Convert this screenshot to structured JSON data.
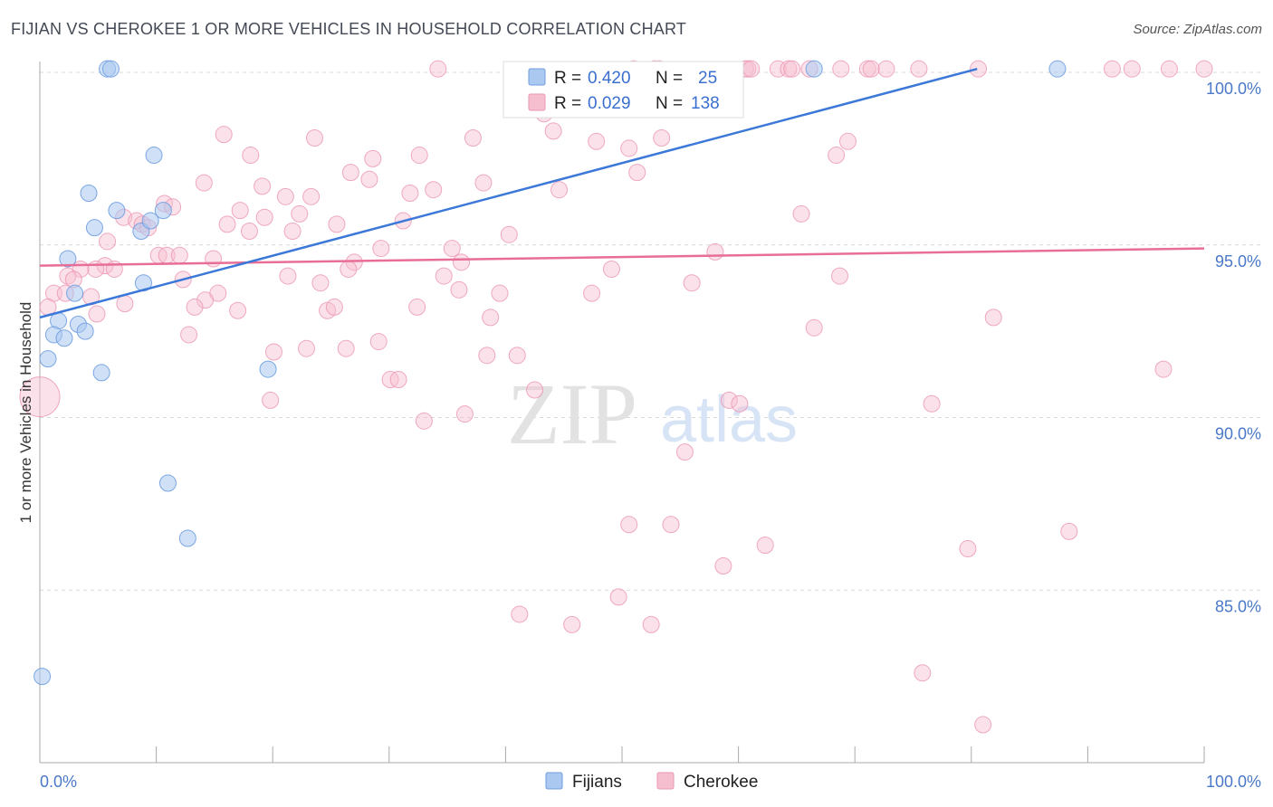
{
  "title": "FIJIAN VS CHEROKEE 1 OR MORE VEHICLES IN HOUSEHOLD CORRELATION CHART",
  "source": "Source: ZipAtlas.com",
  "watermark": {
    "zip": "ZIP",
    "atlas": "atlas"
  },
  "colors": {
    "fijian_fill": "#aac8f0",
    "fijian_stroke": "#6f9de0",
    "fijian_line": "#3b78d8",
    "cherokee_fill": "#f6bfd0",
    "cherokee_stroke": "#eb95b2",
    "cherokee_line": "#e86e98",
    "tick_text": "#4a78c8",
    "grid": "#d9d9d9"
  },
  "legend": {
    "fijian": {
      "r_label": "R = ",
      "r_value": "0.420",
      "n_label": "N = ",
      "n_value": "25"
    },
    "cherokee": {
      "r_label": "R = ",
      "r_value": "0.029",
      "n_label": "N = ",
      "n_value": "138"
    }
  },
  "chart_data": {
    "type": "scatter",
    "title": "FIJIAN VS CHEROKEE 1 OR MORE VEHICLES IN HOUSEHOLD CORRELATION CHART",
    "xlabel": "",
    "ylabel": "1 or more Vehicles in Household",
    "xlim": [
      0,
      100
    ],
    "ylim": [
      80,
      100.5
    ],
    "x_tick_labels": [
      "0.0%",
      "100.0%"
    ],
    "y_ticks": [
      85,
      90,
      95,
      100
    ],
    "y_tick_labels": [
      "85.0%",
      "90.0%",
      "95.0%",
      "100.0%"
    ],
    "grid": true,
    "legend": [
      "Fijians",
      "Cherokee"
    ],
    "series": [
      {
        "name": "Fijians",
        "r": 0.42,
        "n": 25,
        "trend": {
          "x": [
            0,
            80.5
          ],
          "y": [
            92.9,
            100.1
          ]
        },
        "points": [
          {
            "x": 5.8,
            "y": 100.1
          },
          {
            "x": 6.1,
            "y": 100.1
          },
          {
            "x": 66.5,
            "y": 100.1
          },
          {
            "x": 87.4,
            "y": 100.1
          },
          {
            "x": 9.8,
            "y": 97.6
          },
          {
            "x": 4.2,
            "y": 96.5
          },
          {
            "x": 6.6,
            "y": 96.0
          },
          {
            "x": 10.6,
            "y": 96.0
          },
          {
            "x": 4.7,
            "y": 95.5
          },
          {
            "x": 8.7,
            "y": 95.4
          },
          {
            "x": 9.5,
            "y": 95.7
          },
          {
            "x": 2.4,
            "y": 94.6
          },
          {
            "x": 8.9,
            "y": 93.9
          },
          {
            "x": 3.0,
            "y": 93.6
          },
          {
            "x": 1.6,
            "y": 92.8
          },
          {
            "x": 1.2,
            "y": 92.4
          },
          {
            "x": 2.1,
            "y": 92.3
          },
          {
            "x": 3.3,
            "y": 92.7
          },
          {
            "x": 3.9,
            "y": 92.5
          },
          {
            "x": 0.7,
            "y": 91.7
          },
          {
            "x": 5.3,
            "y": 91.3
          },
          {
            "x": 19.6,
            "y": 91.4
          },
          {
            "x": 11.0,
            "y": 88.1
          },
          {
            "x": 12.7,
            "y": 86.5
          },
          {
            "x": 0.2,
            "y": 82.5
          }
        ]
      },
      {
        "name": "Cherokee",
        "r": 0.029,
        "n": 138,
        "trend": {
          "x": [
            0,
            100
          ],
          "y": [
            94.4,
            94.9
          ]
        },
        "points": [
          {
            "x": 34.2,
            "y": 100.1
          },
          {
            "x": 51.0,
            "y": 100.1
          },
          {
            "x": 52.8,
            "y": 100.1
          },
          {
            "x": 53.2,
            "y": 100.1
          },
          {
            "x": 60.6,
            "y": 100.1
          },
          {
            "x": 60.8,
            "y": 100.1
          },
          {
            "x": 61.1,
            "y": 100.1
          },
          {
            "x": 63.4,
            "y": 100.1
          },
          {
            "x": 64.3,
            "y": 100.1
          },
          {
            "x": 64.6,
            "y": 100.1
          },
          {
            "x": 66.1,
            "y": 100.1
          },
          {
            "x": 68.8,
            "y": 100.1
          },
          {
            "x": 71.1,
            "y": 100.1
          },
          {
            "x": 71.4,
            "y": 100.1
          },
          {
            "x": 72.7,
            "y": 100.1
          },
          {
            "x": 75.5,
            "y": 100.1
          },
          {
            "x": 80.6,
            "y": 100.1
          },
          {
            "x": 92.1,
            "y": 100.1
          },
          {
            "x": 93.8,
            "y": 100.1
          },
          {
            "x": 97.0,
            "y": 100.1
          },
          {
            "x": 100.0,
            "y": 100.1
          },
          {
            "x": 42.1,
            "y": 99.5
          },
          {
            "x": 43.3,
            "y": 98.8
          },
          {
            "x": 44.1,
            "y": 98.3
          },
          {
            "x": 15.8,
            "y": 98.2
          },
          {
            "x": 23.6,
            "y": 98.1
          },
          {
            "x": 37.2,
            "y": 98.1
          },
          {
            "x": 53.4,
            "y": 98.1
          },
          {
            "x": 47.8,
            "y": 98.0
          },
          {
            "x": 50.6,
            "y": 97.8
          },
          {
            "x": 69.4,
            "y": 98.0
          },
          {
            "x": 18.1,
            "y": 97.6
          },
          {
            "x": 32.6,
            "y": 97.6
          },
          {
            "x": 28.6,
            "y": 97.5
          },
          {
            "x": 68.4,
            "y": 97.6
          },
          {
            "x": 26.7,
            "y": 97.1
          },
          {
            "x": 51.3,
            "y": 97.1
          },
          {
            "x": 28.3,
            "y": 96.9
          },
          {
            "x": 38.1,
            "y": 96.8
          },
          {
            "x": 14.1,
            "y": 96.8
          },
          {
            "x": 19.1,
            "y": 96.7
          },
          {
            "x": 44.6,
            "y": 96.6
          },
          {
            "x": 31.8,
            "y": 96.5
          },
          {
            "x": 33.8,
            "y": 96.6
          },
          {
            "x": 21.1,
            "y": 96.4
          },
          {
            "x": 23.3,
            "y": 96.4
          },
          {
            "x": 10.7,
            "y": 96.2
          },
          {
            "x": 11.4,
            "y": 96.1
          },
          {
            "x": 17.2,
            "y": 96.0
          },
          {
            "x": 22.3,
            "y": 95.9
          },
          {
            "x": 65.4,
            "y": 95.9
          },
          {
            "x": 7.2,
            "y": 95.8
          },
          {
            "x": 19.3,
            "y": 95.8
          },
          {
            "x": 31.2,
            "y": 95.7
          },
          {
            "x": 8.3,
            "y": 95.7
          },
          {
            "x": 8.8,
            "y": 95.6
          },
          {
            "x": 16.1,
            "y": 95.6
          },
          {
            "x": 25.5,
            "y": 95.6
          },
          {
            "x": 9.3,
            "y": 95.5
          },
          {
            "x": 18.0,
            "y": 95.4
          },
          {
            "x": 21.7,
            "y": 95.4
          },
          {
            "x": 40.3,
            "y": 95.3
          },
          {
            "x": 5.8,
            "y": 95.1
          },
          {
            "x": 29.3,
            "y": 94.9
          },
          {
            "x": 35.4,
            "y": 94.9
          },
          {
            "x": 58.0,
            "y": 94.8
          },
          {
            "x": 10.2,
            "y": 94.7
          },
          {
            "x": 10.9,
            "y": 94.7
          },
          {
            "x": 12.0,
            "y": 94.7
          },
          {
            "x": 14.9,
            "y": 94.6
          },
          {
            "x": 27.0,
            "y": 94.5
          },
          {
            "x": 36.2,
            "y": 94.5
          },
          {
            "x": 5.6,
            "y": 94.4
          },
          {
            "x": 6.4,
            "y": 94.3
          },
          {
            "x": 4.8,
            "y": 94.3
          },
          {
            "x": 3.5,
            "y": 94.3
          },
          {
            "x": 26.5,
            "y": 94.3
          },
          {
            "x": 49.1,
            "y": 94.3
          },
          {
            "x": 2.4,
            "y": 94.1
          },
          {
            "x": 2.9,
            "y": 94.0
          },
          {
            "x": 12.3,
            "y": 94.0
          },
          {
            "x": 21.3,
            "y": 94.1
          },
          {
            "x": 34.7,
            "y": 94.1
          },
          {
            "x": 68.7,
            "y": 94.1
          },
          {
            "x": 24.1,
            "y": 93.9
          },
          {
            "x": 56.0,
            "y": 93.9
          },
          {
            "x": 1.2,
            "y": 93.6
          },
          {
            "x": 2.2,
            "y": 93.6
          },
          {
            "x": 15.3,
            "y": 93.6
          },
          {
            "x": 36.0,
            "y": 93.7
          },
          {
            "x": 39.5,
            "y": 93.6
          },
          {
            "x": 47.4,
            "y": 93.6
          },
          {
            "x": 4.4,
            "y": 93.5
          },
          {
            "x": 14.2,
            "y": 93.4
          },
          {
            "x": 7.3,
            "y": 93.3
          },
          {
            "x": 32.4,
            "y": 93.2
          },
          {
            "x": 13.3,
            "y": 93.2
          },
          {
            "x": 17.0,
            "y": 93.1
          },
          {
            "x": 24.7,
            "y": 93.1
          },
          {
            "x": 25.3,
            "y": 93.2
          },
          {
            "x": 0.7,
            "y": 93.2
          },
          {
            "x": 4.9,
            "y": 93.0
          },
          {
            "x": 81.9,
            "y": 92.9
          },
          {
            "x": 38.7,
            "y": 92.9
          },
          {
            "x": 66.5,
            "y": 92.6
          },
          {
            "x": 12.8,
            "y": 92.4
          },
          {
            "x": 29.1,
            "y": 92.2
          },
          {
            "x": 22.9,
            "y": 92.0
          },
          {
            "x": 26.3,
            "y": 92.0
          },
          {
            "x": 20.1,
            "y": 91.9
          },
          {
            "x": 38.4,
            "y": 91.8
          },
          {
            "x": 41.0,
            "y": 91.8
          },
          {
            "x": 96.5,
            "y": 91.4
          },
          {
            "x": 30.1,
            "y": 91.1
          },
          {
            "x": 30.8,
            "y": 91.1
          },
          {
            "x": 42.5,
            "y": 90.8
          },
          {
            "x": 0.0,
            "y": 90.6
          },
          {
            "x": 19.8,
            "y": 90.5
          },
          {
            "x": 59.2,
            "y": 90.5
          },
          {
            "x": 60.1,
            "y": 90.4
          },
          {
            "x": 76.6,
            "y": 90.4
          },
          {
            "x": 36.5,
            "y": 90.1
          },
          {
            "x": 33.0,
            "y": 89.9
          },
          {
            "x": 55.4,
            "y": 89.0
          },
          {
            "x": 50.6,
            "y": 86.9
          },
          {
            "x": 54.2,
            "y": 86.9
          },
          {
            "x": 88.4,
            "y": 86.7
          },
          {
            "x": 62.3,
            "y": 86.3
          },
          {
            "x": 79.7,
            "y": 86.2
          },
          {
            "x": 58.7,
            "y": 85.7
          },
          {
            "x": 49.7,
            "y": 84.8
          },
          {
            "x": 41.2,
            "y": 84.3
          },
          {
            "x": 45.7,
            "y": 84.0
          },
          {
            "x": 52.5,
            "y": 84.0
          },
          {
            "x": 75.8,
            "y": 82.6
          },
          {
            "x": 81.0,
            "y": 81.1
          }
        ]
      }
    ]
  },
  "bottom_legend": {
    "fijians": "Fijians",
    "cherokee": "Cherokee"
  }
}
